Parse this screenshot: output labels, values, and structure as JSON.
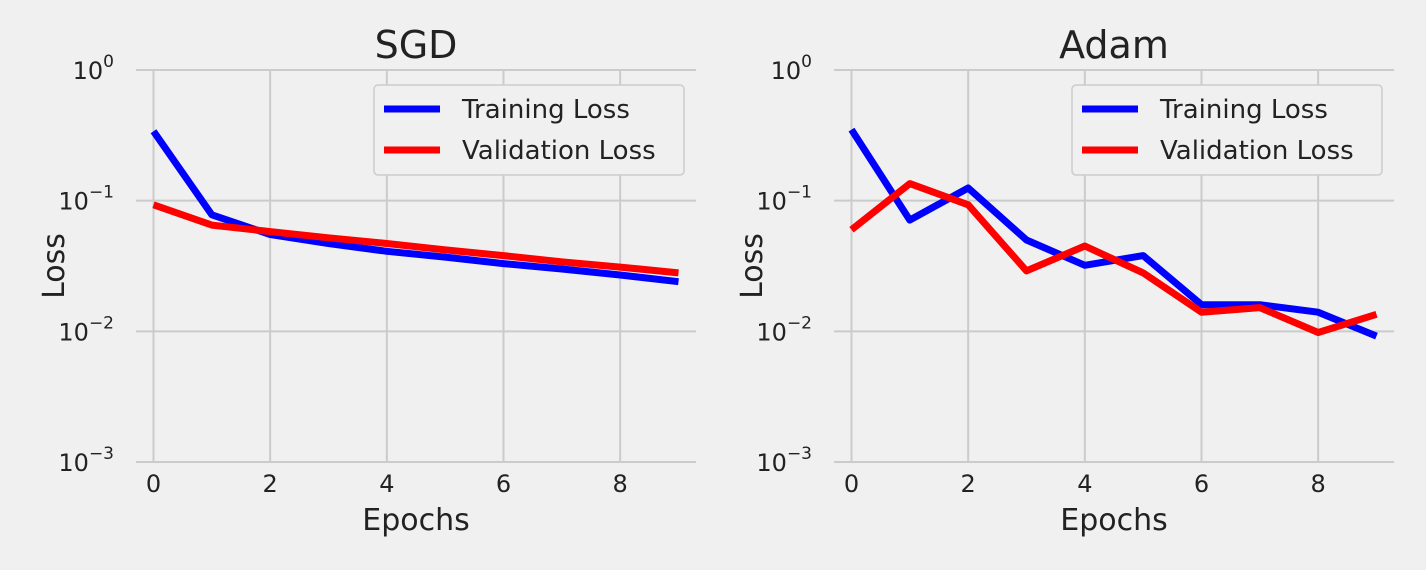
{
  "colors": {
    "background": "#f0f0f0",
    "grid": "#cbcbcb",
    "training": "#0000ff",
    "validation": "#ff0000"
  },
  "chart_data": [
    {
      "type": "line",
      "title": "SGD",
      "xlabel": "Epochs",
      "ylabel": "Loss",
      "yscale": "log",
      "xlim": [
        -0.3,
        9.3
      ],
      "ylim": [
        0.001,
        1
      ],
      "xticks": [
        0,
        2,
        4,
        6,
        8
      ],
      "yticks": [
        {
          "value": 1,
          "base": "10",
          "exp": "0"
        },
        {
          "value": 0.1,
          "base": "10",
          "exp": "−1"
        },
        {
          "value": 0.01,
          "base": "10",
          "exp": "−2"
        },
        {
          "value": 0.001,
          "base": "10",
          "exp": "−3"
        }
      ],
      "grid": true,
      "legend_position": "top-right",
      "x": [
        0,
        1,
        2,
        3,
        4,
        5,
        6,
        7,
        8,
        9
      ],
      "series": [
        {
          "name": "Training Loss",
          "color": "#0000ff",
          "values": [
            0.34,
            0.078,
            0.055,
            0.047,
            0.041,
            0.037,
            0.033,
            0.03,
            0.027,
            0.024
          ]
        },
        {
          "name": "Validation Loss",
          "color": "#ff0000",
          "values": [
            0.093,
            0.065,
            0.058,
            0.052,
            0.047,
            0.042,
            0.038,
            0.034,
            0.031,
            0.028
          ]
        }
      ]
    },
    {
      "type": "line",
      "title": "Adam",
      "xlabel": "Epochs",
      "ylabel": "Loss",
      "yscale": "log",
      "xlim": [
        -0.3,
        9.3
      ],
      "ylim": [
        0.001,
        1
      ],
      "xticks": [
        0,
        2,
        4,
        6,
        8
      ],
      "yticks": [
        {
          "value": 1,
          "base": "10",
          "exp": "0"
        },
        {
          "value": 0.1,
          "base": "10",
          "exp": "−1"
        },
        {
          "value": 0.01,
          "base": "10",
          "exp": "−2"
        },
        {
          "value": 0.001,
          "base": "10",
          "exp": "−3"
        }
      ],
      "grid": true,
      "legend_position": "top-right",
      "x": [
        0,
        1,
        2,
        3,
        4,
        5,
        6,
        7,
        8,
        9
      ],
      "series": [
        {
          "name": "Training Loss",
          "color": "#0000ff",
          "values": [
            0.35,
            0.071,
            0.125,
            0.05,
            0.032,
            0.038,
            0.016,
            0.016,
            0.014,
            0.0092
          ]
        },
        {
          "name": "Validation Loss",
          "color": "#ff0000",
          "values": [
            0.06,
            0.135,
            0.093,
            0.029,
            0.045,
            0.028,
            0.014,
            0.0152,
            0.0098,
            0.0135
          ]
        }
      ]
    }
  ]
}
